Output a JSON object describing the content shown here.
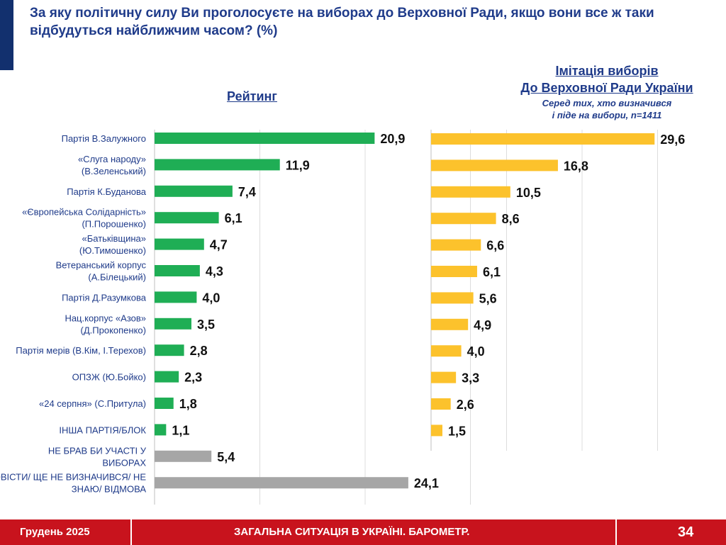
{
  "slide": {
    "question": "За яку політичну силу Ви проголосуєте на виборах до Верховної Ради, якщо вони все ж таки відбудуться найближчим часом? (%)"
  },
  "panels": {
    "rating_title": "Рейтинг",
    "simulation_title_line1": "Імітація виборів",
    "simulation_title_line2": "До Верховної Ради України",
    "simulation_subtitle_line1": "Серед тих, хто визначився",
    "simulation_subtitle_line2": "і піде на вибори, n=1411"
  },
  "footer": {
    "date": "Грудень 2025",
    "title": "ЗАГАЛЬНА СИТУАЦІЯ В УКРАЇНІ. БАРОМЕТР.",
    "page": "34"
  },
  "colors": {
    "accent": "#12306e",
    "title_text": "#1f3b8a",
    "green_bar": "#1fae55",
    "gray_bar": "#a6a6a6",
    "yellow_bar": "#fcc22c",
    "footer_bg": "#c8131d"
  },
  "chart_data": [
    {
      "type": "bar",
      "orientation": "horizontal",
      "title": "Рейтинг",
      "categories": [
        [
          "Партія В.Залужного"
        ],
        [
          "«Слуга народу»",
          "(В.Зеленський)"
        ],
        [
          "Партія К.Буданова"
        ],
        [
          "«Європейська Солідарність»",
          "(П.Порошенко)"
        ],
        [
          "«Батьківщина»",
          "(Ю.Тимошенко)"
        ],
        [
          "Ветеранський корпус",
          "(А.Білецький)"
        ],
        [
          "Партія Д.Разумкова"
        ],
        [
          "Нац.корпус «Азов»",
          "(Д.Прокопенко)"
        ],
        [
          "Партія мерів (В.Кім, І.Терехов)"
        ],
        [
          "ОПЗЖ (Ю.Бойко)"
        ],
        [
          "«24 серпня» (С.Притула)"
        ],
        [
          "ІНША ПАРТІЯ/БЛОК"
        ],
        [
          "НЕ БРАВ БИ УЧАСТІ У",
          "ВИБОРАХ"
        ],
        [
          "ВАЖКО ВІДПОВІСТИ/ ЩЕ НЕ ВИЗНАЧИВСЯ/ НЕ",
          "ЗНАЮ/ ВІДМОВА"
        ]
      ],
      "values": [
        20.9,
        11.9,
        7.4,
        6.1,
        4.7,
        4.3,
        4.0,
        3.5,
        2.8,
        2.3,
        1.8,
        1.1,
        5.4,
        24.1
      ],
      "value_labels": [
        "20,9",
        "11,9",
        "7,4",
        "6,1",
        "4,7",
        "4,3",
        "4,0",
        "3,5",
        "2,8",
        "2,3",
        "1,8",
        "1,1",
        "5,4",
        "24,1"
      ],
      "bar_colors": [
        "green",
        "green",
        "green",
        "green",
        "green",
        "green",
        "green",
        "green",
        "green",
        "green",
        "green",
        "green",
        "gray",
        "gray"
      ],
      "xlim": [
        0,
        30
      ],
      "grid": true
    },
    {
      "type": "bar",
      "orientation": "horizontal",
      "title": "Імітація виборів До Верховної Ради України",
      "subtitle": "Серед тих, хто визначився і піде на вибори, n=1411",
      "values": [
        29.6,
        16.8,
        10.5,
        8.6,
        6.6,
        6.1,
        5.6,
        4.9,
        4.0,
        3.3,
        2.6,
        1.5
      ],
      "value_labels": [
        "29,6",
        "16,8",
        "10,5",
        "8,6",
        "6,6",
        "6,1",
        "5,6",
        "4,9",
        "4,0",
        "3,3",
        "2,6",
        "1,5"
      ],
      "bar_colors": [
        "yellow",
        "yellow",
        "yellow",
        "yellow",
        "yellow",
        "yellow",
        "yellow",
        "yellow",
        "yellow",
        "yellow",
        "yellow",
        "yellow"
      ],
      "xlim": [
        0,
        30
      ],
      "grid": true
    }
  ]
}
